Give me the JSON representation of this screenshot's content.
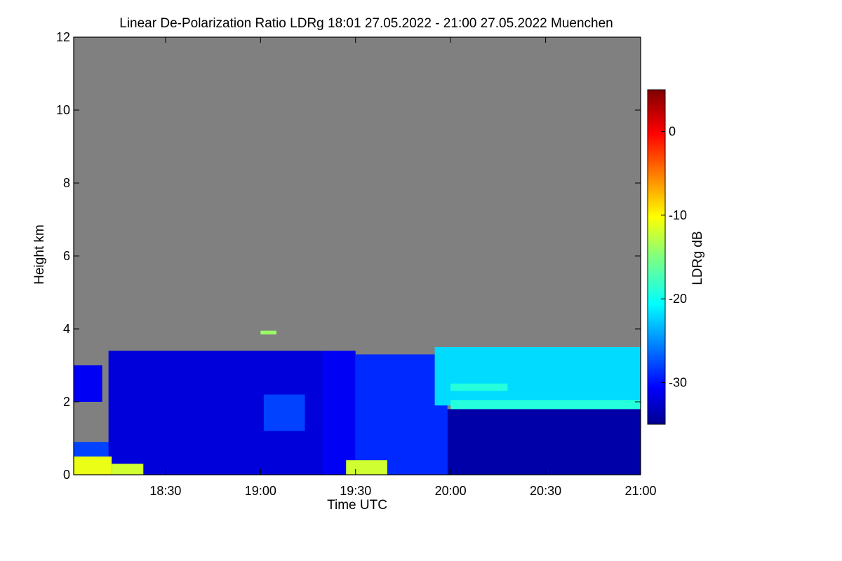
{
  "chart_data": {
    "type": "heatmap",
    "title": "Linear De-Polarization Ratio LDRg   18:01 27.05.2022 - 21:00 27.05.2022 Muenchen",
    "xlabel": "Time UTC",
    "ylabel": "Height km",
    "colorbar_label": "LDRg dB",
    "x_range_minutes_utc": [
      1081,
      1260
    ],
    "x_ticks": [
      {
        "label": "18:30",
        "value": 1110
      },
      {
        "label": "19:00",
        "value": 1140
      },
      {
        "label": "19:30",
        "value": 1170
      },
      {
        "label": "20:00",
        "value": 1200
      },
      {
        "label": "20:30",
        "value": 1230
      },
      {
        "label": "21:00",
        "value": 1260
      }
    ],
    "ylim": [
      0,
      12
    ],
    "y_ticks": [
      0,
      2,
      4,
      6,
      8,
      10,
      12
    ],
    "colorbar_range_db": [
      -35,
      5
    ],
    "colorbar_ticks": [
      0,
      -10,
      -20,
      -30
    ],
    "no_data_color": "#808080",
    "colormap": "jet",
    "layers": [
      {
        "x_start": 1081,
        "x_end": 1093,
        "y_bottom": 0.0,
        "y_top": 0.9,
        "ldr": -28
      },
      {
        "x_start": 1081,
        "x_end": 1090,
        "y_bottom": 2.0,
        "y_top": 3.0,
        "ldr": -31
      },
      {
        "x_start": 1092,
        "x_end": 1160,
        "y_bottom": 0.0,
        "y_top": 3.4,
        "ldr": -32
      },
      {
        "x_start": 1160,
        "x_end": 1170,
        "y_bottom": 0.0,
        "y_top": 3.4,
        "ldr": -31
      },
      {
        "x_start": 1170,
        "x_end": 1199,
        "y_bottom": 0.0,
        "y_top": 3.3,
        "ldr": -29
      },
      {
        "x_start": 1199,
        "x_end": 1260,
        "y_bottom": 0.0,
        "y_top": 1.8,
        "ldr": -34
      },
      {
        "x_start": 1195,
        "x_end": 1260,
        "y_bottom": 1.9,
        "y_top": 3.5,
        "ldr": -22
      },
      {
        "x_start": 1081,
        "x_end": 1093,
        "y_bottom": 0.0,
        "y_top": 0.5,
        "ldr": -11
      },
      {
        "x_start": 1093,
        "x_end": 1103,
        "y_bottom": 0.0,
        "y_top": 0.3,
        "ldr": -12
      },
      {
        "x_start": 1141,
        "x_end": 1154,
        "y_bottom": 1.2,
        "y_top": 2.2,
        "ldr": -28
      },
      {
        "x_start": 1167,
        "x_end": 1180,
        "y_bottom": 0.0,
        "y_top": 0.4,
        "ldr": -12
      },
      {
        "x_start": 1140,
        "x_end": 1145,
        "y_bottom": 3.85,
        "y_top": 3.95,
        "ldr": -14
      },
      {
        "x_start": 1200,
        "x_end": 1260,
        "y_bottom": 1.8,
        "y_top": 2.05,
        "ldr": -19
      },
      {
        "x_start": 1200,
        "x_end": 1218,
        "y_bottom": 2.3,
        "y_top": 2.5,
        "ldr": -19
      }
    ],
    "grid": false,
    "legend": "colorbar-right"
  }
}
